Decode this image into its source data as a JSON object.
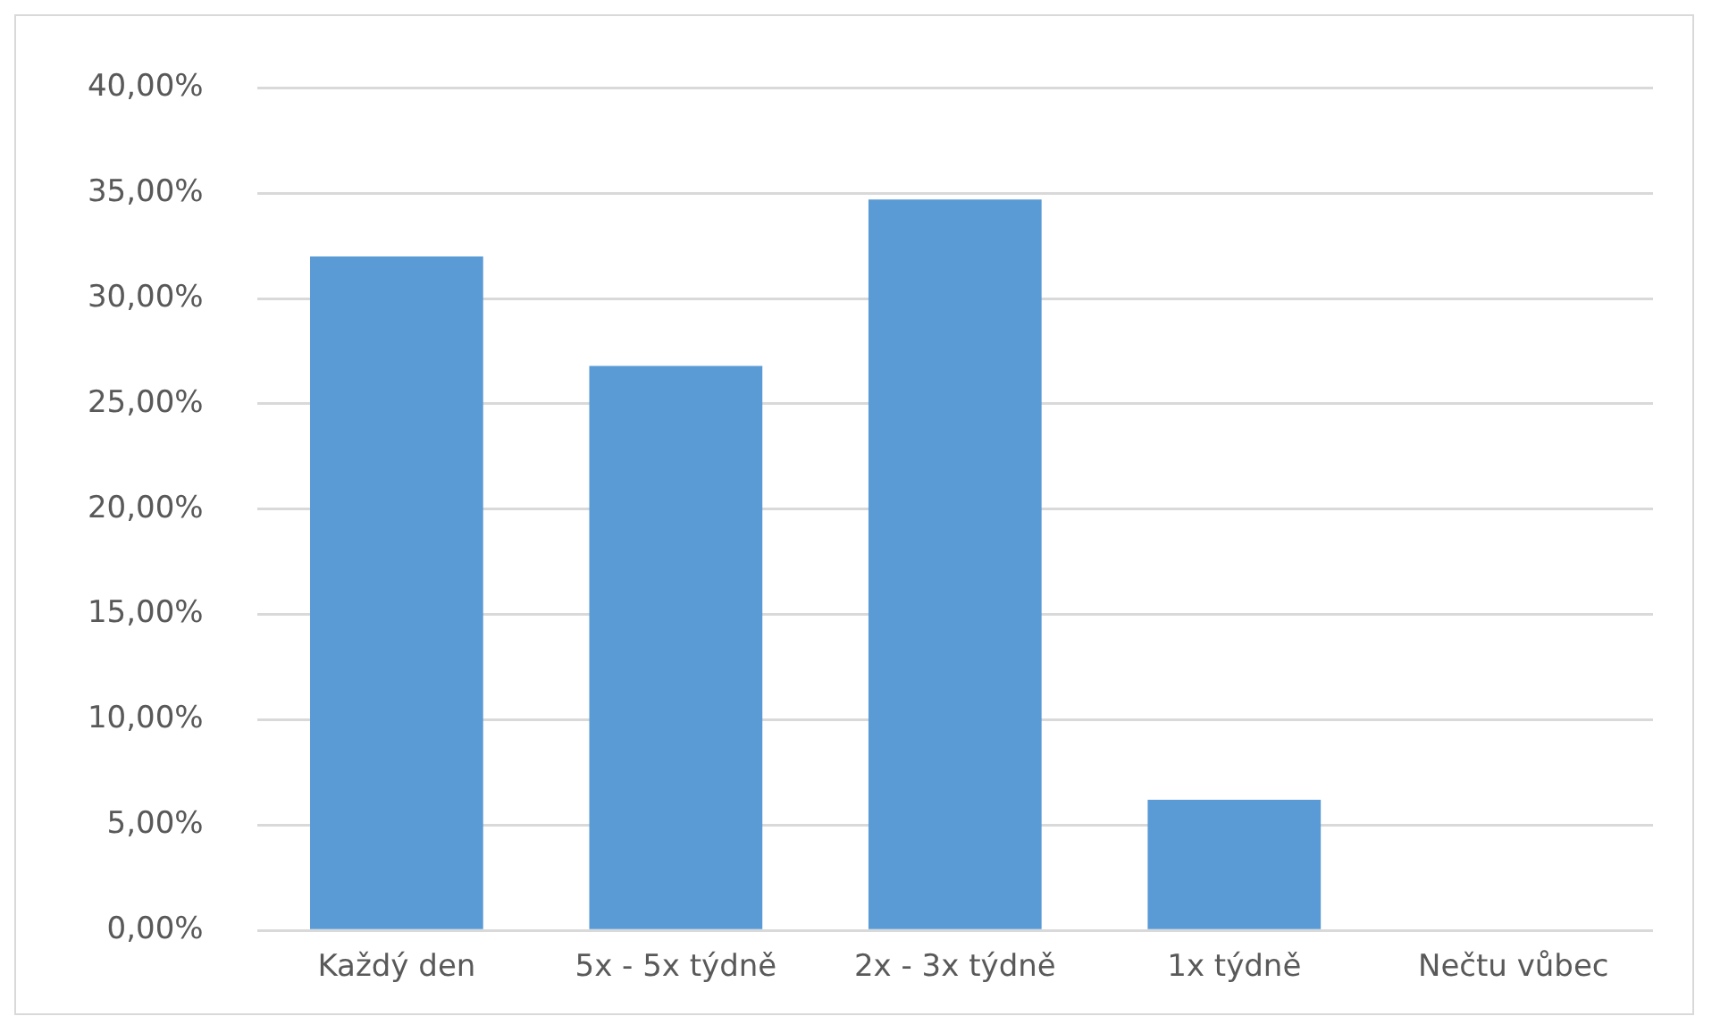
{
  "chart_data": {
    "type": "bar",
    "categories": [
      "Každý den",
      "5x - 5x týdně",
      "2x - 3x týdně",
      "1x týdně",
      "Nečtu vůbec"
    ],
    "values": [
      32.0,
      26.8,
      34.7,
      6.2,
      0
    ],
    "color": "#5b9bd5",
    "ylim": [
      0,
      40
    ],
    "yticks": [
      {
        "value": 0,
        "label": "0,00%"
      },
      {
        "value": 5,
        "label": "5,00%"
      },
      {
        "value": 10,
        "label": "10,00%"
      },
      {
        "value": 15,
        "label": "15,00%"
      },
      {
        "value": 20,
        "label": "20,00%"
      },
      {
        "value": 25,
        "label": "25,00%"
      },
      {
        "value": 30,
        "label": "30,00%"
      },
      {
        "value": 35,
        "label": "35,00%"
      },
      {
        "value": 40,
        "label": "40,00%"
      }
    ],
    "grid": "y",
    "legend": false
  }
}
